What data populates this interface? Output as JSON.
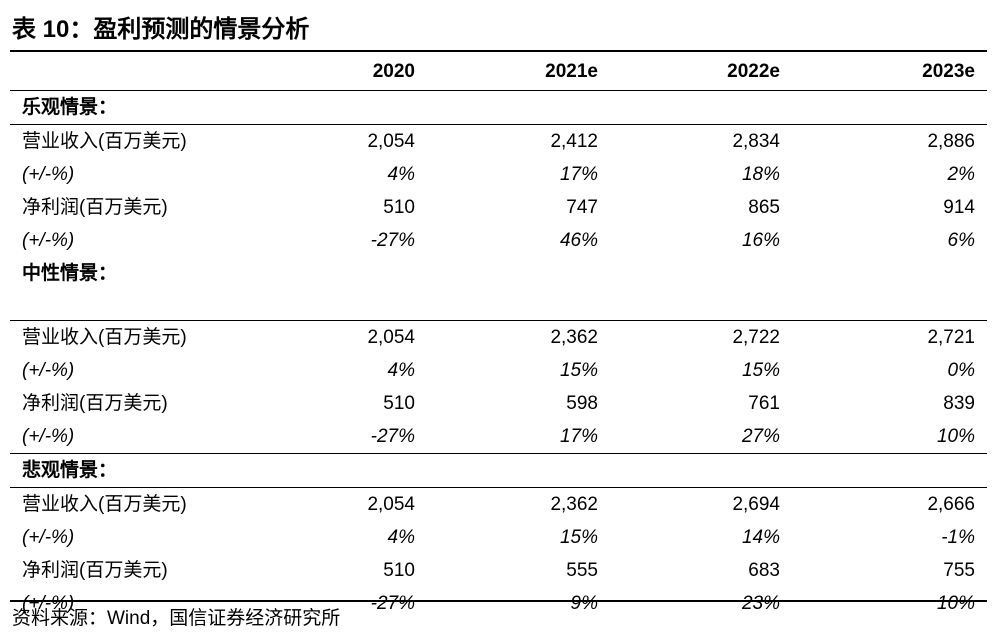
{
  "title": "表 10：盈利预测的情景分析",
  "columns": [
    "",
    "2020",
    "2021e",
    "2022e",
    "2023e"
  ],
  "scenarios": [
    {
      "name": "乐观情景：",
      "rows": [
        {
          "label": "营业收入(百万美元)",
          "values": [
            "2,054",
            "2,412",
            "2,834",
            "2,886"
          ]
        },
        {
          "label": "(+/-%)",
          "values": [
            "4%",
            "17%",
            "18%",
            "2%"
          ]
        },
        {
          "label": "净利润(百万美元)",
          "values": [
            "510",
            "747",
            "865",
            "914"
          ]
        },
        {
          "label": "(+/-%)",
          "values": [
            "-27%",
            "46%",
            "16%",
            "6%"
          ]
        }
      ]
    },
    {
      "name": "中性情景：",
      "rows": [
        {
          "label": "营业收入(百万美元)",
          "values": [
            "2,054",
            "2,362",
            "2,722",
            "2,721"
          ]
        },
        {
          "label": "(+/-%)",
          "values": [
            "4%",
            "15%",
            "15%",
            "0%"
          ]
        },
        {
          "label": "净利润(百万美元)",
          "values": [
            "510",
            "598",
            "761",
            "839"
          ]
        },
        {
          "label": "(+/-%)",
          "values": [
            "-27%",
            "17%",
            "27%",
            "10%"
          ]
        }
      ]
    },
    {
      "name": "悲观情景：",
      "rows": [
        {
          "label": "营业收入(百万美元)",
          "values": [
            "2,054",
            "2,362",
            "2,694",
            "2,666"
          ]
        },
        {
          "label": "(+/-%)",
          "values": [
            "4%",
            "15%",
            "14%",
            "-1%"
          ]
        },
        {
          "label": "净利润(百万美元)",
          "values": [
            "510",
            "555",
            "683",
            "755"
          ]
        },
        {
          "label": "(+/-%)",
          "values": [
            "-27%",
            "9%",
            "23%",
            "10%"
          ]
        }
      ]
    }
  ],
  "source": "资料来源：Wind，国信证券经济研究所"
}
